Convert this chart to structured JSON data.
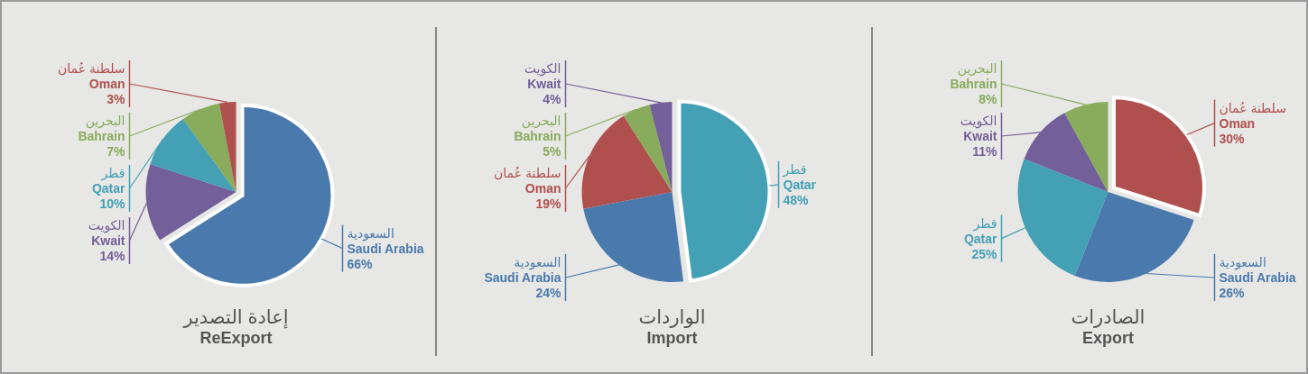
{
  "chart_data": [
    {
      "type": "pie",
      "title": "إعادة التصدير",
      "subtitle": "ReExport",
      "categories": [
        "السعودية\nSaudi Arabia",
        "الكويت\nKwait",
        "قطر\nQatar",
        "البحرين\nBahrain",
        "سلطنة عُمان\nOman"
      ],
      "values": [
        66,
        14,
        10,
        7,
        3
      ],
      "colors": [
        "#4a7aad",
        "#735f99",
        "#43a0b5",
        "#88ab5c",
        "#b0504e"
      ],
      "value_labels": [
        "66%",
        "14%",
        "10%",
        "7%",
        "3%"
      ]
    },
    {
      "type": "pie",
      "title": "الواردات",
      "subtitle": "Import",
      "categories": [
        "قطر\nQatar",
        "السعودية\nSaudi Arabia",
        "سلطنة عُمان\nOman",
        "البحرين\nBahrain",
        "الكويت\nKwait"
      ],
      "values": [
        48,
        24,
        19,
        5,
        4
      ],
      "colors": [
        "#43a0b5",
        "#4a7aad",
        "#b0504e",
        "#88ab5c",
        "#735f99"
      ],
      "value_labels": [
        "48%",
        "24%",
        "19%",
        "5%",
        "4%"
      ]
    },
    {
      "type": "pie",
      "title": "الصادرات",
      "subtitle": "Export",
      "categories": [
        "سلطنة عُمان\nOman",
        "السعودية\nSaudi Arabia",
        "قطر\nQatar",
        "الكويت\nKwait",
        "البحرين\nBahrain"
      ],
      "values": [
        30,
        26,
        25,
        11,
        8
      ],
      "colors": [
        "#b0504e",
        "#4a7aad",
        "#43a0b5",
        "#735f99",
        "#88ab5c"
      ],
      "value_labels": [
        "30%",
        "26%",
        "25%",
        "11%",
        "8%"
      ]
    }
  ]
}
